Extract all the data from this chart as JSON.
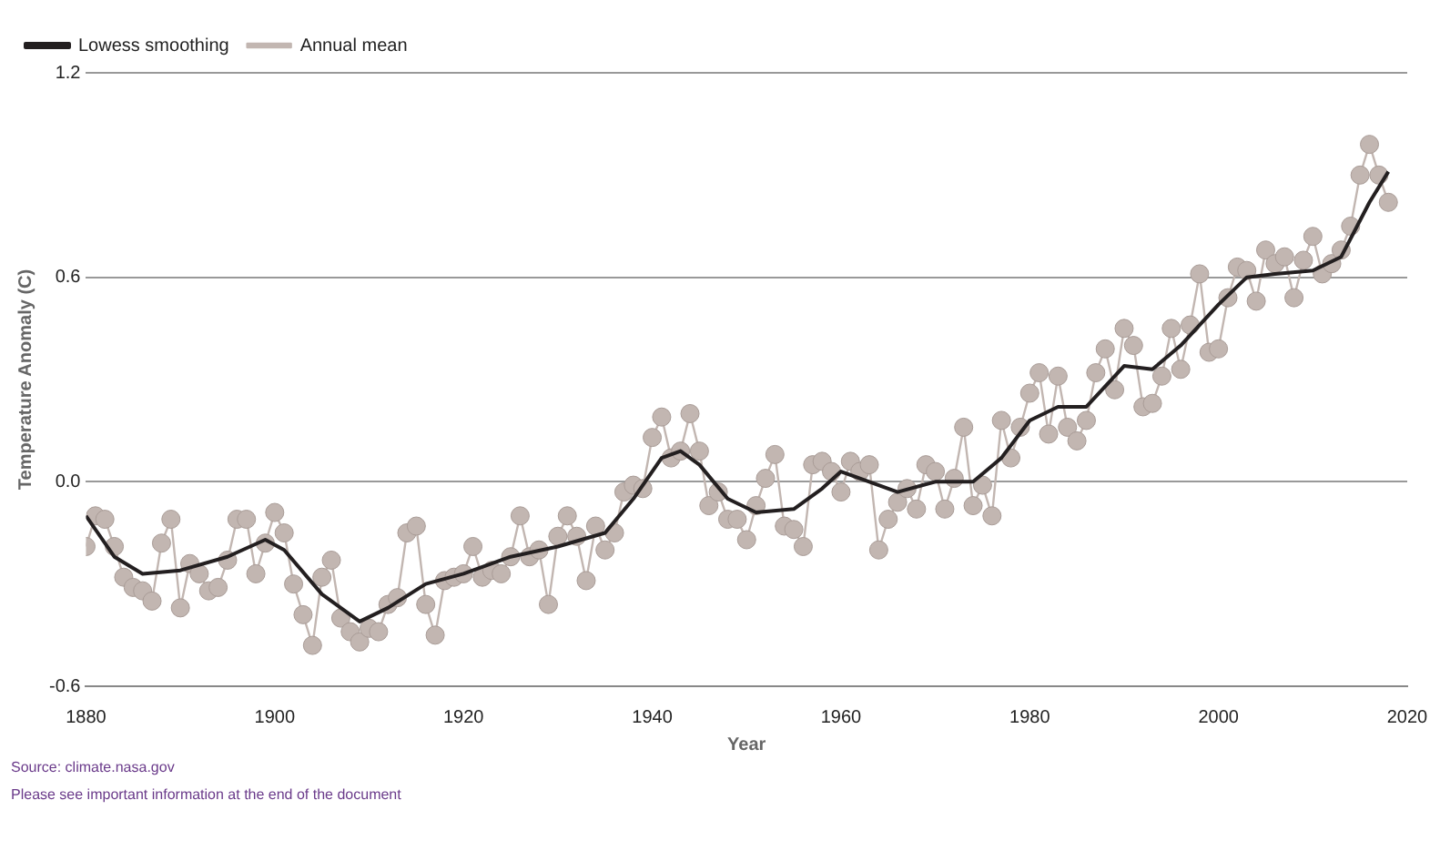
{
  "chart_data": {
    "type": "line",
    "xlabel": "Year",
    "ylabel": "Temperature Anomaly (C)",
    "xlim": [
      1880,
      2020
    ],
    "xticks": [
      1880,
      1900,
      1920,
      1940,
      1960,
      1980,
      2000,
      2020
    ],
    "ylim": [
      -0.6,
      1.2
    ],
    "yticks": [
      {
        "value": -0.6,
        "label": "-0.6"
      },
      {
        "value": 0,
        "label": "0.0"
      },
      {
        "value": 0.6,
        "label": "0.6"
      },
      {
        "value": 1.2,
        "label": "1.2"
      }
    ],
    "grid": "y",
    "legend": "top left",
    "series": [
      {
        "name": "Annual mean",
        "color": "#c2b6b1",
        "marker": "circle",
        "x": [
          1880,
          1881,
          1882,
          1883,
          1884,
          1885,
          1886,
          1887,
          1888,
          1889,
          1890,
          1891,
          1892,
          1893,
          1894,
          1895,
          1896,
          1897,
          1898,
          1899,
          1900,
          1901,
          1902,
          1903,
          1904,
          1905,
          1906,
          1907,
          1908,
          1909,
          1910,
          1911,
          1912,
          1913,
          1914,
          1915,
          1916,
          1917,
          1918,
          1919,
          1920,
          1921,
          1922,
          1923,
          1924,
          1925,
          1926,
          1927,
          1928,
          1929,
          1930,
          1931,
          1932,
          1933,
          1934,
          1935,
          1936,
          1937,
          1938,
          1939,
          1940,
          1941,
          1942,
          1943,
          1944,
          1945,
          1946,
          1947,
          1948,
          1949,
          1950,
          1951,
          1952,
          1953,
          1954,
          1955,
          1956,
          1957,
          1958,
          1959,
          1960,
          1961,
          1962,
          1963,
          1964,
          1965,
          1966,
          1967,
          1968,
          1969,
          1970,
          1971,
          1972,
          1973,
          1974,
          1975,
          1976,
          1977,
          1978,
          1979,
          1980,
          1981,
          1982,
          1983,
          1984,
          1985,
          1986,
          1987,
          1988,
          1989,
          1990,
          1991,
          1992,
          1993,
          1994,
          1995,
          1996,
          1997,
          1998,
          1999,
          2000,
          2001,
          2002,
          2003,
          2004,
          2005,
          2006,
          2007,
          2008,
          2009,
          2010,
          2011,
          2012,
          2013,
          2014,
          2015,
          2016,
          2017,
          2018
        ],
        "values": [
          -0.19,
          -0.1,
          -0.11,
          -0.19,
          -0.28,
          -0.31,
          -0.32,
          -0.35,
          -0.18,
          -0.11,
          -0.37,
          -0.24,
          -0.27,
          -0.32,
          -0.31,
          -0.23,
          -0.11,
          -0.11,
          -0.27,
          -0.18,
          -0.09,
          -0.15,
          -0.3,
          -0.39,
          -0.48,
          -0.28,
          -0.23,
          -0.4,
          -0.44,
          -0.47,
          -0.43,
          -0.44,
          -0.36,
          -0.34,
          -0.15,
          -0.13,
          -0.36,
          -0.45,
          -0.29,
          -0.28,
          -0.27,
          -0.19,
          -0.28,
          -0.26,
          -0.27,
          -0.22,
          -0.1,
          -0.22,
          -0.2,
          -0.36,
          -0.16,
          -0.1,
          -0.16,
          -0.29,
          -0.13,
          -0.2,
          -0.15,
          -0.03,
          -0.01,
          -0.02,
          0.13,
          0.19,
          0.07,
          0.09,
          0.2,
          0.09,
          -0.07,
          -0.03,
          -0.11,
          -0.11,
          -0.17,
          -0.07,
          0.01,
          0.08,
          -0.13,
          -0.14,
          -0.19,
          0.05,
          0.06,
          0.03,
          -0.03,
          0.06,
          0.03,
          0.05,
          -0.2,
          -0.11,
          -0.06,
          -0.02,
          -0.08,
          0.05,
          0.03,
          -0.08,
          0.01,
          0.16,
          -0.07,
          -0.01,
          -0.1,
          0.18,
          0.07,
          0.16,
          0.26,
          0.32,
          0.14,
          0.31,
          0.16,
          0.12,
          0.18,
          0.32,
          0.39,
          0.27,
          0.45,
          0.4,
          0.22,
          0.23,
          0.31,
          0.45,
          0.33,
          0.46,
          0.61,
          0.38,
          0.39,
          0.54,
          0.63,
          0.62,
          0.53,
          0.68,
          0.64,
          0.66,
          0.54,
          0.65,
          0.72,
          0.61,
          0.64,
          0.68,
          0.75,
          0.9,
          0.99,
          0.9,
          0.82
        ]
      },
      {
        "name": "Lowess smoothing",
        "color": "#231f20",
        "marker": "none",
        "x": [
          1880,
          1883,
          1886,
          1890,
          1895,
          1899,
          1901,
          1905,
          1909,
          1912,
          1916,
          1920,
          1925,
          1930,
          1935,
          1938,
          1941,
          1943,
          1945,
          1948,
          1951,
          1955,
          1958,
          1960,
          1963,
          1966,
          1970,
          1974,
          1977,
          1980,
          1983,
          1986,
          1990,
          1993,
          1996,
          2000,
          2003,
          2006,
          2010,
          2013,
          2016,
          2018
        ],
        "values": [
          -0.1,
          -0.22,
          -0.27,
          -0.26,
          -0.22,
          -0.17,
          -0.2,
          -0.33,
          -0.41,
          -0.37,
          -0.3,
          -0.27,
          -0.22,
          -0.19,
          -0.15,
          -0.05,
          0.07,
          0.09,
          0.05,
          -0.05,
          -0.09,
          -0.08,
          -0.02,
          0.03,
          0,
          -0.03,
          0,
          0,
          0.07,
          0.18,
          0.22,
          0.22,
          0.34,
          0.33,
          0.4,
          0.52,
          0.6,
          0.61,
          0.62,
          0.66,
          0.82,
          0.91
        ]
      }
    ],
    "annotations": [
      "Source: climate.nasa.gov",
      "Please see important information at the end of the document"
    ]
  }
}
